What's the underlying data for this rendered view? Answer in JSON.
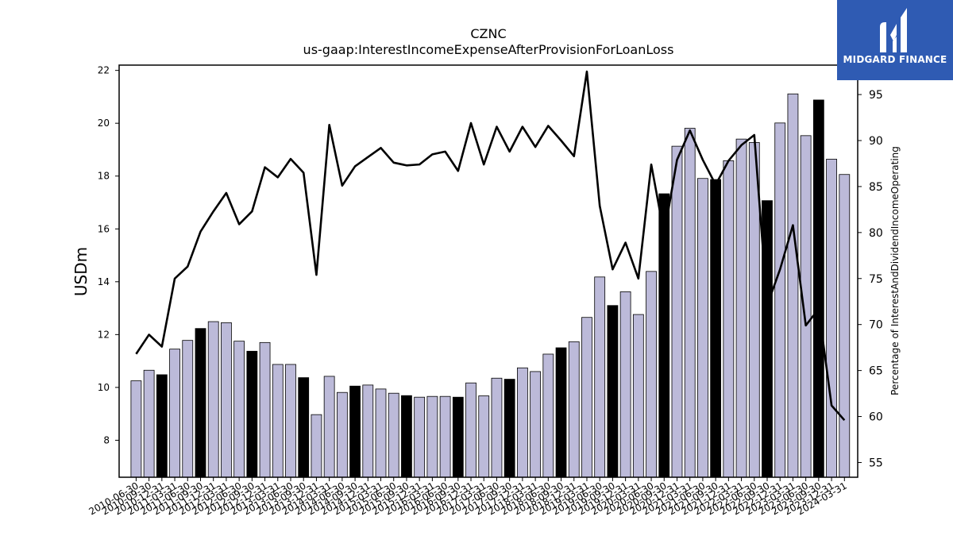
{
  "chart_data": {
    "type": "bar",
    "title": "CZNC",
    "subtitle": "us-gaap:InterestIncomeExpenseAfterProvisionForLoanLoss",
    "ylabel": "USDm",
    "y2label": "Percentage of InterestAndDividendIncomeOperating",
    "ylim": [
      6.6,
      22.2
    ],
    "y2lim": [
      53.4,
      98.2
    ],
    "yticks": [
      8,
      10,
      12,
      14,
      16,
      18,
      20,
      22
    ],
    "y2ticks": [
      55,
      60,
      65,
      70,
      75,
      80,
      85,
      90,
      95
    ],
    "grid": false,
    "bar_fill": "#bcbad9",
    "highlight_fill": "#000000",
    "line_color": "#000000",
    "categories": [
      "2010-06-30",
      "2010-09-30",
      "2010-12-31",
      "2011-03-31",
      "2011-06-30",
      "2011-09-30",
      "2011-12-31",
      "2012-03-31",
      "2012-06-30",
      "2012-09-30",
      "2012-12-31",
      "2013-03-31",
      "2013-06-30",
      "2013-09-30",
      "2013-12-31",
      "2014-03-31",
      "2014-06-30",
      "2014-09-30",
      "2014-12-31",
      "2015-03-31",
      "2015-06-30",
      "2015-09-30",
      "2015-12-31",
      "2016-03-31",
      "2016-06-30",
      "2016-09-30",
      "2016-12-31",
      "2017-03-31",
      "2017-06-30",
      "2017-09-30",
      "2017-12-31",
      "2018-03-31",
      "2018-06-30",
      "2018-09-30",
      "2018-12-31",
      "2019-03-31",
      "2019-06-30",
      "2019-09-30",
      "2019-12-31",
      "2020-03-31",
      "2020-06-30",
      "2020-09-30",
      "2020-12-31",
      "2021-03-31",
      "2021-06-30",
      "2021-09-30",
      "2021-12-31",
      "2022-03-31",
      "2022-06-30",
      "2022-09-30",
      "2022-12-31",
      "2023-03-31",
      "2023-06-30",
      "2023-09-30",
      "2023-12-31",
      "2024-03-31"
    ],
    "tick_labels": [
      "2010-06-30",
      "2010-09-30",
      "2010-12-31",
      "2011-03-31",
      "2011-06-30",
      "2011-09-30",
      "2011-12-31",
      "2012-03-31",
      "2012-06-30",
      "2012-09-30",
      "2012-12-31",
      "2013-03-31",
      "2013-06-30",
      "2013-09-30",
      "2013-12-31",
      "2014-03-31",
      "2014-06-30",
      "2014-09-30",
      "2014-12-31",
      "2015-03-31",
      "2015-06-30",
      "2015-09-30",
      "2015-12-31",
      "2016-03-31",
      "2016-06-30",
      "2016-09-30",
      "2016-12-31",
      "2017-03-31",
      "2017-06-30",
      "2017-09-30",
      "2017-12-31",
      "2018-03-31",
      "2018-06-30",
      "2018-09-30",
      "2018-12-31",
      "2019-03-31",
      "2019-06-30",
      "2019-09-30",
      "2019-12-31",
      "2020-03-31",
      "2020-06-30",
      "2020-09-30",
      "2020-12-31",
      "2021-03-31",
      "2021-06-30",
      "2021-09-30",
      "2021-12-31",
      "2022-03-31",
      "2022-06-30",
      "2022-09-30",
      "2022-12-31",
      "2023-03-31",
      "2023-06-30",
      "2023-09-30",
      "2023-12-31",
      "2024-03-31"
    ],
    "highlight": [
      false,
      false,
      true,
      false,
      false,
      true,
      false,
      false,
      false,
      true,
      false,
      false,
      false,
      true,
      false,
      false,
      false,
      true,
      false,
      false,
      false,
      true,
      false,
      false,
      false,
      true,
      false,
      false,
      false,
      true,
      false,
      false,
      false,
      true,
      false,
      false,
      false,
      true,
      false,
      false,
      false,
      true,
      false,
      false,
      false,
      true,
      false,
      false,
      false,
      true,
      false,
      false,
      false,
      true,
      false,
      false
    ],
    "series": [
      {
        "type": "bar",
        "axis": "left",
        "values": [
          10.25,
          10.65,
          10.48,
          11.45,
          11.78,
          12.23,
          12.49,
          12.45,
          11.75,
          11.37,
          11.7,
          10.87,
          10.87,
          10.37,
          8.97,
          10.42,
          9.81,
          10.05,
          10.09,
          9.94,
          9.78,
          9.69,
          9.63,
          9.66,
          9.66,
          9.63,
          10.17,
          9.68,
          10.35,
          10.31,
          10.74,
          10.6,
          11.26,
          11.5,
          11.73,
          12.65,
          14.18,
          13.1,
          13.62,
          12.76,
          14.39,
          17.33,
          19.13,
          19.81,
          17.91,
          17.87,
          18.58,
          19.4,
          19.27,
          17.07,
          20.01,
          21.11,
          19.53,
          20.88,
          18.64,
          18.06
        ]
      },
      {
        "type": "line",
        "axis": "right",
        "values": [
          66.8,
          68.9,
          67.6,
          75.0,
          76.3,
          80.1,
          82.3,
          84.3,
          80.9,
          82.3,
          87.1,
          86.0,
          88.0,
          86.5,
          75.4,
          91.7,
          85.1,
          87.2,
          88.2,
          89.2,
          87.6,
          87.3,
          87.4,
          88.5,
          88.8,
          86.7,
          91.9,
          87.4,
          91.5,
          88.8,
          91.5,
          89.3,
          91.6,
          90.0,
          88.3,
          97.5,
          82.9,
          76.0,
          78.9,
          75.0,
          87.4,
          79.8,
          87.9,
          91.1,
          87.9,
          85.2,
          87.8,
          89.5,
          90.6,
          72.1,
          76.0,
          80.8,
          69.9,
          71.7,
          61.2,
          59.6
        ]
      }
    ]
  },
  "logo": {
    "text": "MIDGARD FINANCE",
    "bg_color": "#2f5bb3"
  }
}
